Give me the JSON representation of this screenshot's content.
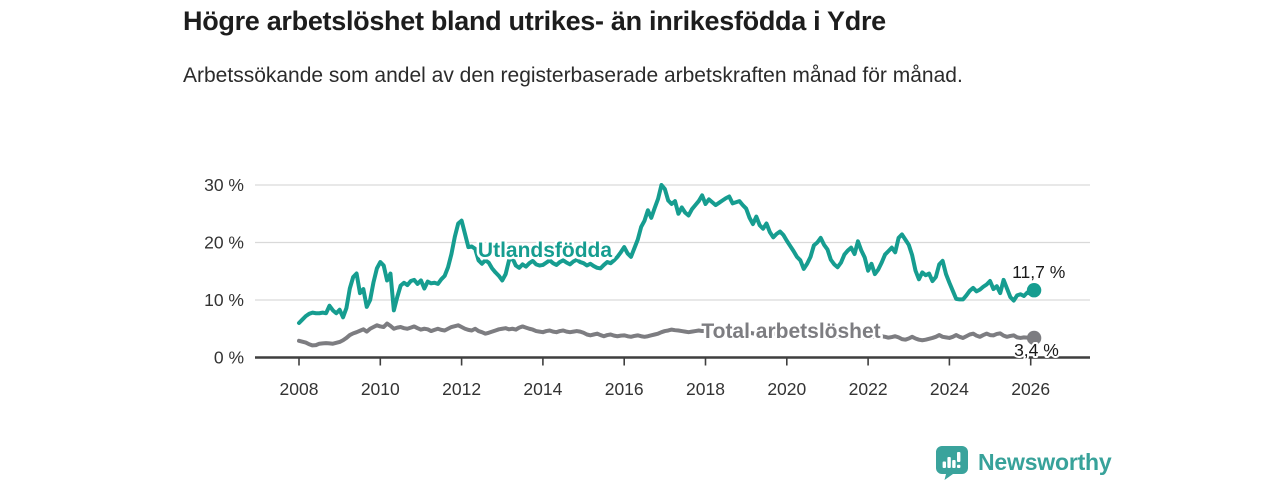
{
  "title": "Högre arbetslöshet bland utrikes- än inrikesfödda i Ydre",
  "subtitle": "Arbetssökande som andel av den registerbaserade arbetskraften månad för månad.",
  "branding": {
    "logo_text": "Newsworthy",
    "logo_icon": "newsworthy-speech-bubble-bar-chart-icon",
    "brand_color": "#3aa39c"
  },
  "colors": {
    "foreign_born_line": "#169d90",
    "total_line": "#7d7d81",
    "grid": "#d9d9d9",
    "axis": "#3f3f3f",
    "tick_text": "#333333",
    "value_label_text": "#1a1a1a",
    "background": "#ffffff"
  },
  "chart_data": {
    "type": "line",
    "title": "Högre arbetslöshet bland utrikes- än inrikesfödda i Ydre",
    "subtitle": "Arbetssökande som andel av den registerbaserade arbetskraften månad för månad.",
    "xlabel": "",
    "ylabel": "",
    "grid": "horizontal-only",
    "legend_position": "inline-on-line",
    "x_unit": "year-month",
    "x_start": 2008.0,
    "x_step": 0.0833333,
    "ylim": [
      0,
      31
    ],
    "y_ticks": [
      {
        "v": 0,
        "label": "0 %"
      },
      {
        "v": 10,
        "label": "10 %"
      },
      {
        "v": 20,
        "label": "20 %"
      },
      {
        "v": 30,
        "label": "30 %"
      }
    ],
    "x_ticks": [
      {
        "v": 2008,
        "label": "2008"
      },
      {
        "v": 2010,
        "label": "2010"
      },
      {
        "v": 2012,
        "label": "2012"
      },
      {
        "v": 2014,
        "label": "2014"
      },
      {
        "v": 2016,
        "label": "2016"
      },
      {
        "v": 2018,
        "label": "2018"
      },
      {
        "v": 2020,
        "label": "2020"
      },
      {
        "v": 2022,
        "label": "2022"
      },
      {
        "v": 2024,
        "label": "2024"
      },
      {
        "v": 2026,
        "label": "2026"
      }
    ],
    "series": [
      {
        "name": "Utlandsfödda",
        "color": "#169d90",
        "end_label": "11,7 %",
        "end_value": 11.7,
        "values": [
          6.0,
          6.6,
          7.2,
          7.6,
          7.8,
          7.7,
          7.7,
          7.8,
          7.7,
          9.0,
          8.2,
          7.7,
          8.3,
          7.0,
          8.6,
          12.0,
          14.0,
          14.6,
          11.2,
          11.9,
          8.8,
          10.0,
          13.1,
          15.5,
          16.6,
          16.0,
          13.4,
          14.6,
          8.2,
          10.5,
          12.5,
          13.0,
          12.6,
          13.3,
          13.5,
          12.8,
          13.4,
          12.0,
          13.2,
          12.9,
          13.0,
          12.8,
          13.6,
          14.2,
          15.7,
          18.0,
          21.0,
          23.3,
          23.8,
          21.5,
          19.2,
          19.3,
          18.9,
          16.9,
          16.3,
          16.9,
          16.5,
          15.5,
          14.8,
          14.2,
          13.4,
          14.5,
          16.9,
          17.3,
          16.0,
          15.6,
          16.2,
          15.8,
          16.4,
          16.8,
          16.2,
          16.0,
          16.1,
          16.5,
          16.9,
          16.4,
          16.1,
          16.6,
          16.9,
          16.5,
          16.2,
          16.7,
          17.0,
          16.6,
          16.4,
          16.0,
          16.3,
          15.9,
          15.6,
          15.5,
          16.1,
          16.6,
          16.4,
          16.9,
          17.5,
          18.3,
          19.2,
          18.1,
          17.5,
          19.0,
          20.5,
          22.7,
          23.8,
          25.6,
          24.3,
          26.0,
          27.6,
          30.0,
          29.3,
          27.3,
          26.7,
          27.2,
          25.0,
          26.1,
          25.2,
          24.7,
          25.8,
          26.5,
          27.2,
          28.2,
          26.7,
          27.5,
          27.0,
          26.5,
          26.9,
          27.3,
          27.7,
          28.0,
          26.8,
          27.0,
          27.2,
          26.5,
          25.9,
          24.3,
          23.2,
          24.5,
          23.0,
          22.4,
          23.3,
          21.8,
          20.9,
          21.5,
          21.9,
          21.3,
          20.3,
          19.4,
          18.5,
          17.5,
          16.9,
          15.4,
          16.3,
          17.5,
          19.5,
          20.0,
          20.8,
          19.6,
          18.8,
          17.0,
          16.2,
          15.7,
          16.5,
          17.9,
          18.6,
          19.1,
          18.0,
          20.2,
          18.6,
          17.4,
          15.1,
          16.3,
          14.5,
          15.3,
          16.5,
          17.9,
          18.5,
          19.1,
          18.3,
          20.8,
          21.4,
          20.5,
          19.6,
          17.8,
          15.1,
          13.6,
          14.8,
          14.3,
          14.6,
          13.3,
          14.0,
          16.2,
          16.8,
          14.5,
          13.0,
          11.6,
          10.2,
          10.1,
          10.1,
          10.8,
          11.6,
          12.1,
          11.5,
          11.8,
          12.3,
          12.7,
          13.3,
          11.9,
          12.4,
          11.2,
          13.5,
          12.0,
          10.5,
          9.9,
          10.8,
          11.0,
          10.7,
          11.3,
          11.1,
          11.7
        ]
      },
      {
        "name": "Total arbetslöshet",
        "color": "#7d7d81",
        "end_label": "3,4 %",
        "end_value": 3.4,
        "values": [
          2.9,
          2.75,
          2.6,
          2.3,
          2.1,
          2.15,
          2.4,
          2.45,
          2.5,
          2.45,
          2.4,
          2.55,
          2.7,
          3.0,
          3.4,
          3.9,
          4.2,
          4.4,
          4.65,
          4.9,
          4.5,
          5.0,
          5.3,
          5.6,
          5.4,
          5.3,
          5.9,
          5.5,
          5.0,
          5.2,
          5.3,
          5.1,
          5.0,
          5.2,
          5.4,
          5.1,
          4.85,
          5.0,
          4.9,
          4.6,
          4.8,
          5.0,
          4.8,
          4.7,
          5.0,
          5.3,
          5.45,
          5.6,
          5.3,
          5.0,
          4.8,
          4.7,
          5.0,
          4.6,
          4.4,
          4.15,
          4.3,
          4.5,
          4.7,
          4.9,
          5.0,
          5.1,
          4.9,
          5.0,
          4.85,
          5.2,
          5.4,
          5.2,
          5.0,
          4.85,
          4.6,
          4.5,
          4.4,
          4.6,
          4.7,
          4.5,
          4.4,
          4.6,
          4.7,
          4.5,
          4.4,
          4.5,
          4.6,
          4.5,
          4.3,
          4.0,
          3.85,
          4.0,
          4.15,
          3.9,
          3.7,
          3.9,
          4.0,
          3.8,
          3.7,
          3.8,
          3.85,
          3.7,
          3.6,
          3.75,
          3.85,
          3.7,
          3.6,
          3.7,
          3.85,
          4.0,
          4.15,
          4.4,
          4.6,
          4.7,
          4.85,
          4.75,
          4.7,
          4.6,
          4.5,
          4.4,
          4.5,
          4.6,
          4.7,
          4.6,
          4.6,
          4.75,
          4.9,
          4.8,
          4.7,
          4.6,
          4.5,
          4.55,
          4.6,
          4.5,
          4.45,
          4.4,
          4.4,
          4.3,
          4.2,
          4.1,
          4.0,
          3.9,
          3.95,
          4.0,
          4.1,
          4.15,
          4.2,
          4.3,
          4.35,
          4.3,
          4.4,
          4.5,
          4.4,
          4.3,
          4.2,
          4.1,
          4.0,
          4.0,
          3.9,
          3.8,
          3.7,
          3.75,
          3.7,
          3.6,
          3.55,
          3.5,
          3.55,
          3.5,
          3.45,
          3.5,
          3.55,
          3.5,
          3.6,
          3.55,
          3.6,
          3.65,
          3.7,
          3.6,
          3.45,
          3.55,
          3.7,
          3.5,
          3.2,
          3.1,
          3.3,
          3.6,
          3.3,
          3.1,
          3.0,
          3.1,
          3.25,
          3.4,
          3.6,
          3.9,
          3.6,
          3.5,
          3.4,
          3.6,
          3.9,
          3.6,
          3.4,
          3.7,
          4.0,
          4.15,
          3.8,
          3.6,
          3.9,
          4.15,
          3.9,
          3.85,
          4.1,
          4.2,
          3.8,
          3.6,
          3.75,
          3.85,
          3.5,
          3.4,
          3.5,
          3.45,
          3.4,
          3.4
        ]
      }
    ]
  }
}
